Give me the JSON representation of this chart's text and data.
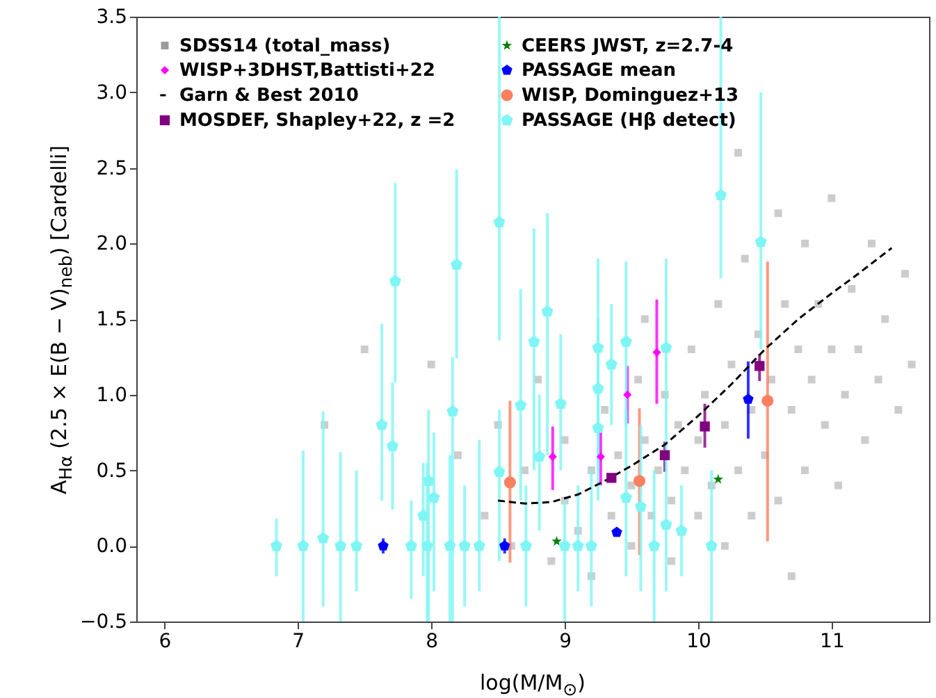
{
  "chart_data": {
    "type": "scatter",
    "xlabel": "log(M/M$_{⊙}$)",
    "ylabel": "A$_{Hα}$ (2.5 × E(B − V)$_{neb}$) [Cardelli]",
    "xlim": [
      5.79,
      11.73
    ],
    "xticks": [
      6,
      7,
      8,
      9,
      10,
      11
    ],
    "ylim": [
      -0.5,
      3.5
    ],
    "yticks": [
      {
        "value": -0.5,
        "label": "−0.5"
      },
      {
        "value": 0,
        "label": "0.0"
      },
      0.5,
      {
        "value": 1,
        "label": "1.0"
      },
      1.5,
      {
        "value": 2,
        "label": "2.0"
      },
      2.5,
      {
        "value": 3,
        "label": "3.0"
      },
      3.5
    ],
    "grid": false,
    "legend": "top left",
    "series": [
      {
        "name": "SDSS14 (total_mass)",
        "type": "scatter",
        "marker": "square",
        "color": "#9a9a9a",
        "x": [
          8.2,
          8.4,
          8.5,
          8.6,
          8.7,
          8.8,
          8.9,
          9.0,
          9.0,
          9.1,
          9.2,
          9.2,
          9.3,
          9.35,
          9.4,
          9.5,
          9.5,
          9.55,
          9.6,
          9.65,
          9.7,
          9.75,
          9.8,
          9.8,
          9.85,
          9.9,
          9.95,
          10.0,
          10.0,
          10.05,
          10.1,
          10.15,
          10.2,
          10.2,
          10.25,
          10.3,
          10.35,
          10.4,
          10.4,
          10.45,
          10.5,
          10.55,
          10.6,
          10.6,
          10.65,
          10.7,
          10.75,
          10.8,
          10.8,
          10.85,
          10.9,
          10.95,
          11.0,
          11.0,
          11.05,
          11.1,
          11.15,
          11.2,
          11.25,
          11.3,
          11.35,
          11.4,
          11.5,
          11.55,
          10.3,
          9.6,
          8.0,
          7.2,
          7.5,
          10.7,
          11.6
        ],
        "values": [
          0.6,
          0.2,
          0.8,
          0.0,
          0.5,
          1.1,
          -0.1,
          0.3,
          0.7,
          0.1,
          0.5,
          -0.2,
          0.9,
          0.2,
          0.6,
          0.0,
          0.4,
          1.1,
          0.7,
          0.2,
          0.5,
          1.0,
          -0.1,
          0.3,
          0.8,
          0.5,
          1.3,
          0.2,
          0.7,
          1.0,
          0.4,
          1.6,
          0.8,
          0.0,
          1.2,
          0.5,
          1.9,
          0.9,
          0.2,
          1.4,
          0.6,
          1.1,
          2.2,
          0.3,
          1.6,
          0.9,
          1.3,
          0.5,
          2.0,
          1.1,
          1.6,
          0.8,
          1.3,
          2.3,
          0.4,
          1.0,
          1.7,
          1.3,
          0.7,
          2.0,
          1.1,
          1.5,
          0.9,
          1.8,
          2.6,
          1.5,
          1.2,
          0.8,
          1.3,
          -0.2,
          1.2
        ]
      },
      {
        "name": "Garn & Best 2010",
        "type": "line",
        "marker": "none",
        "line_style": "dashed",
        "color": "#000000",
        "x": [
          8.5,
          8.7,
          8.9,
          9.1,
          9.3,
          9.5,
          9.75,
          10.0,
          10.25,
          10.5,
          10.75,
          11.0,
          11.2,
          11.45
        ],
        "values": [
          0.3,
          0.28,
          0.29,
          0.34,
          0.43,
          0.53,
          0.67,
          0.86,
          1.07,
          1.3,
          1.5,
          1.67,
          1.8,
          1.97
        ]
      },
      {
        "name": "CEERS JWST, z=2.7-4",
        "type": "scatter",
        "marker": "star",
        "color": "#008000",
        "x": [
          8.94,
          10.15
        ],
        "values": [
          0.03,
          0.44
        ]
      },
      {
        "name": "WISP, Dominguez+13",
        "type": "scatter",
        "marker": "circle",
        "color": "#fa8060",
        "x": [
          8.59,
          9.56,
          10.52
        ],
        "values": [
          0.42,
          0.43,
          0.96
        ],
        "errors": [
          [
            -0.11,
            0.96
          ],
          [
            -0.06,
            0.91
          ],
          [
            0.03,
            1.88
          ]
        ]
      },
      {
        "name": "WISP+3DHST,Battisti+22",
        "type": "scatter",
        "marker": "diamond",
        "color": "#ff00ff",
        "x": [
          8.91,
          9.27,
          9.47,
          9.69
        ],
        "values": [
          0.59,
          0.59,
          1.0,
          1.28
        ],
        "errors": [
          [
            0.37,
            0.79
          ],
          [
            0.4,
            0.77
          ],
          [
            0.81,
            1.19
          ],
          [
            0.94,
            1.63
          ]
        ]
      },
      {
        "name": "MOSDEF, Shapley+22, z =2",
        "type": "scatter",
        "marker": "square",
        "color": "#800080",
        "x": [
          9.35,
          9.75,
          10.05,
          10.46
        ],
        "values": [
          0.45,
          0.6,
          0.79,
          1.19
        ],
        "errors": [
          null,
          [
            0.49,
            0.69
          ],
          [
            0.65,
            0.94
          ],
          [
            1.09,
            1.27
          ]
        ]
      },
      {
        "name": "PASSAGE mean",
        "type": "scatter",
        "color": "#0000ff",
        "x": [
          7.64,
          8.55,
          9.39,
          10.375
        ],
        "values": [
          0.0,
          0.0,
          0.09,
          0.97
        ],
        "errors": [
          [
            -0.05,
            0.05
          ],
          [
            -0.05,
            0.05
          ],
          null,
          [
            0.71,
            1.22
          ]
        ]
      },
      {
        "name": "PASSAGE (Hβ detect)",
        "type": "scatter",
        "color": "#7ff5f5",
        "x": [
          6.84,
          7.04,
          7.19,
          7.32,
          7.44,
          7.63,
          7.71,
          7.73,
          7.85,
          7.94,
          7.97,
          7.98,
          8.02,
          8.14,
          8.16,
          8.19,
          8.25,
          8.36,
          8.51,
          8.51,
          8.67,
          8.71,
          8.77,
          8.81,
          8.87,
          8.97,
          9.0,
          9.1,
          9.2,
          9.25,
          9.25,
          9.25,
          9.35,
          9.46,
          9.46,
          9.57,
          9.67,
          9.76,
          9.76,
          9.875,
          10.1,
          10.17,
          10.47
        ],
        "values": [
          0,
          0,
          0.05,
          0,
          0,
          0.8,
          0.66,
          1.75,
          0,
          0.2,
          0,
          0.43,
          0.32,
          0,
          0.89,
          1.86,
          0,
          0,
          2.14,
          0.49,
          0.93,
          0,
          1.35,
          0.59,
          1.55,
          0.94,
          0,
          0,
          0,
          1.31,
          1.04,
          0.78,
          1.2,
          1.35,
          0.32,
          0.26,
          0,
          1.31,
          0.14,
          0.1,
          0,
          2.32,
          2.01
        ],
        "errors": [
          [
            -0.2,
            0.18
          ],
          [
            -0.5,
            0.63
          ],
          [
            -0.4,
            0.89
          ],
          [
            -0.5,
            0.62
          ],
          [
            -0.3,
            0.5
          ],
          [
            0.3,
            1.47
          ],
          [
            0.24,
            1.08
          ],
          [
            1.08,
            2.4
          ],
          [
            -0.35,
            0.3
          ],
          [
            -0.2,
            0.55
          ],
          [
            -0.5,
            0.55
          ],
          [
            -0.5,
            0.9
          ],
          [
            -0.3,
            0.75
          ],
          [
            -0.5,
            0.6
          ],
          [
            -0.5,
            1.25
          ],
          [
            1.24,
            2.49
          ],
          [
            -0.4,
            0.4
          ],
          [
            -0.3,
            0.7
          ],
          [
            1.36,
            3.5
          ],
          [
            -0.1,
            0.9
          ],
          [
            0.3,
            1.7
          ],
          [
            -0.4,
            0.4
          ],
          [
            0.5,
            2.1
          ],
          [
            0.1,
            1.0
          ],
          [
            0.6,
            2.2
          ],
          [
            0.5,
            1.4
          ],
          [
            -0.5,
            0.3
          ],
          [
            -0.3,
            0.4
          ],
          [
            -0.4,
            0.5
          ],
          [
            0.8,
            1.9
          ],
          [
            0.5,
            1.5
          ],
          [
            0.3,
            1.2
          ],
          [
            0.8,
            1.6
          ],
          [
            0.8,
            1.88
          ],
          [
            -0.2,
            0.9
          ],
          [
            -0.3,
            0.8
          ],
          [
            -0.5,
            0.5
          ],
          [
            0.6,
            1.9
          ],
          [
            -0.3,
            0.6
          ],
          [
            -0.2,
            0.4
          ],
          [
            -0.5,
            0.5
          ],
          [
            1.77,
            3.5
          ],
          [
            1.3,
            3.0
          ]
        ]
      }
    ]
  }
}
